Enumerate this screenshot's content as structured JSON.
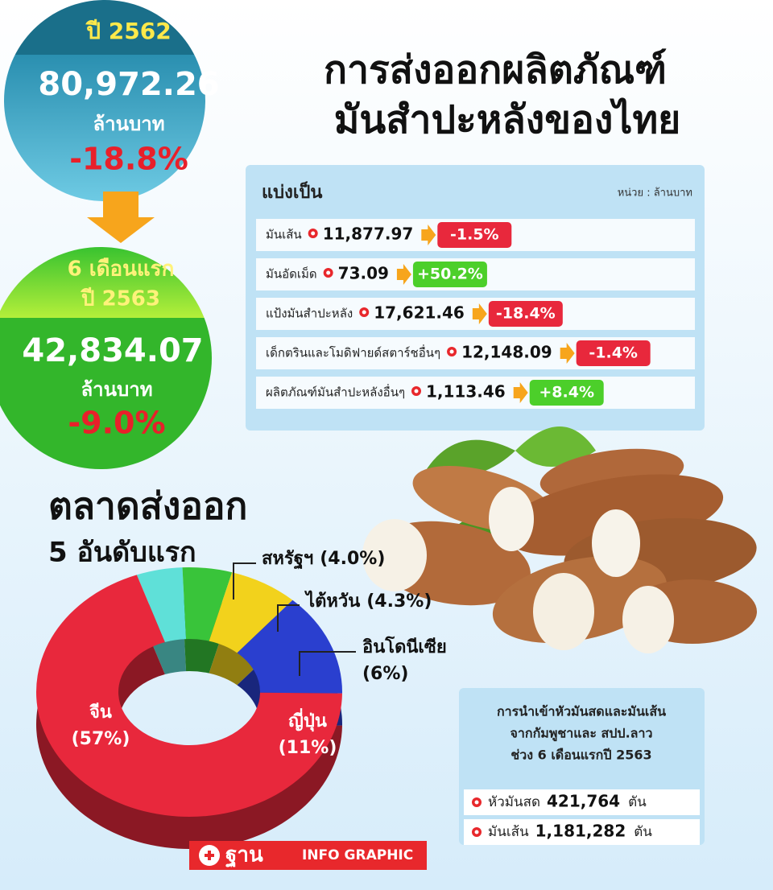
{
  "summary_2562": {
    "label": "ปี 2562",
    "value": "80,972.26",
    "unit": "ล้านบาท",
    "change": "-18.8%"
  },
  "summary_2563": {
    "label_line1": "6 เดือนแรก",
    "label_line2": "ปี 2563",
    "value": "42,834.07",
    "unit": "ล้านบาท",
    "change": "-9.0%"
  },
  "title": [
    "การส่งออกผลิตภัณฑ์",
    "มันสำปะหลังของไทย"
  ],
  "breakdown": {
    "heading": "แบ่งเป็น",
    "unit_note": "หน่วย : ล้านบาท",
    "rows": [
      {
        "name": "มันเส้น",
        "value": "11,877.97",
        "change": "-1.5%"
      },
      {
        "name": "มันอัดเม็ด",
        "value": "73.09",
        "change": "+50.2%"
      },
      {
        "name": "แป้งมันสำปะหลัง",
        "value": "17,621.46",
        "change": "-18.4%"
      },
      {
        "name": "เด็กตรินและโมดิฟายด์สตาร์ชอื่นๆ",
        "value": "12,148.09",
        "change": "-1.4%"
      },
      {
        "name": "ผลิตภัณฑ์มันสำปะหลังอื่นๆ",
        "value": "1,113.46",
        "change": "+8.4%"
      }
    ]
  },
  "imports": {
    "title": [
      "การนำเข้าหัวมันสดและมันเส้น",
      "จากกัมพูชาและ สปป.ลาว",
      "ช่วง 6 เดือนแรกปี 2563"
    ],
    "rows": [
      {
        "name": "หัวมันสด",
        "value": "421,764",
        "unit": "ตัน"
      },
      {
        "name": "มันเส้น",
        "value": "1,181,282",
        "unit": "ตัน"
      }
    ]
  },
  "chart_data": {
    "type": "pie",
    "title": "ตลาดส่งออก",
    "subtitle": "5 อันดับแรก",
    "categories": [
      "สหรัฐฯ",
      "ไต้หวัน",
      "อินโดนีเซีย",
      "ญี่ปุ่น",
      "จีน"
    ],
    "values": [
      4.0,
      4.3,
      6,
      11,
      57
    ],
    "value_labels": [
      "(4.0%)",
      "(4.3%)",
      "(6%)",
      "(11%)",
      "(57%)"
    ],
    "colors": [
      "#5fe0d8",
      "#39c43a",
      "#f2d21c",
      "#2a3fcf",
      "#e8283c"
    ]
  },
  "logo": {
    "brand": "ฐาน",
    "tag": "INFO GRAPHIC"
  }
}
